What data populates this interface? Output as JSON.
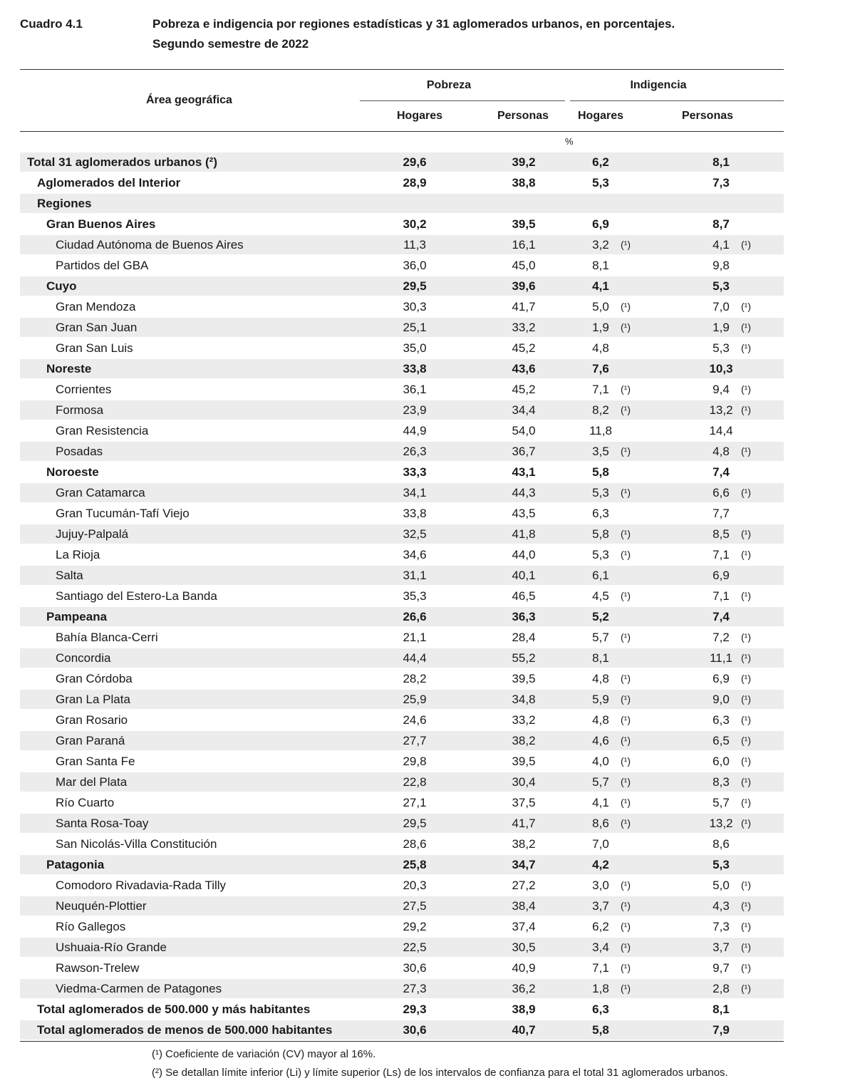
{
  "header": {
    "label": "Cuadro 4.1",
    "title": [
      "Pobreza e indigencia por regiones estadísticas y 31 aglomerados urbanos, en porcentajes.",
      "Segundo semestre de 2022"
    ]
  },
  "table": {
    "area_header": "Área geográfica",
    "groups": [
      "Pobreza",
      "Indigencia"
    ],
    "columns": [
      "Hogares",
      "Personas",
      "Hogares",
      "Personas"
    ],
    "unit": "%",
    "rows": [
      {
        "label": "Total 31 aglomerados urbanos (²)",
        "level": 0,
        "cells": [
          "29,6",
          "39,2",
          "6,2",
          "8,1"
        ]
      },
      {
        "label": "Aglomerados del Interior",
        "level": 1,
        "cells": [
          "28,9",
          "38,8",
          "5,3",
          "7,3"
        ]
      },
      {
        "label": "Regiones",
        "level": 1,
        "cells": []
      },
      {
        "label": "Gran Buenos Aires",
        "level": 2,
        "cells": [
          "30,2",
          "39,5",
          "6,9",
          "8,7"
        ]
      },
      {
        "label": "Ciudad Autónoma de Buenos Aires",
        "level": 3,
        "cells": [
          "11,3",
          "16,1",
          [
            "3,2",
            "(¹)"
          ],
          [
            "4,1",
            "(¹)"
          ]
        ]
      },
      {
        "label": "Partidos del GBA",
        "level": 3,
        "cells": [
          "36,0",
          "45,0",
          "8,1",
          "9,8"
        ]
      },
      {
        "label": "Cuyo",
        "level": 2,
        "cells": [
          "29,5",
          "39,6",
          "4,1",
          "5,3"
        ]
      },
      {
        "label": "Gran Mendoza",
        "level": 3,
        "cells": [
          "30,3",
          "41,7",
          [
            "5,0",
            "(¹)"
          ],
          [
            "7,0",
            "(¹)"
          ]
        ]
      },
      {
        "label": "Gran San Juan",
        "level": 3,
        "cells": [
          "25,1",
          "33,2",
          [
            "1,9",
            "(¹)"
          ],
          [
            "1,9",
            "(¹)"
          ]
        ]
      },
      {
        "label": "Gran San Luis",
        "level": 3,
        "cells": [
          "35,0",
          "45,2",
          "4,8",
          [
            "5,3",
            "(¹)"
          ]
        ]
      },
      {
        "label": "Noreste",
        "level": 2,
        "cells": [
          "33,8",
          "43,6",
          "7,6",
          "10,3"
        ]
      },
      {
        "label": "Corrientes",
        "level": 3,
        "cells": [
          "36,1",
          "45,2",
          [
            "7,1",
            "(¹)"
          ],
          [
            "9,4",
            "(¹)"
          ]
        ]
      },
      {
        "label": "Formosa",
        "level": 3,
        "cells": [
          "23,9",
          "34,4",
          [
            "8,2",
            "(¹)"
          ],
          [
            "13,2",
            "(¹)"
          ]
        ]
      },
      {
        "label": "Gran Resistencia",
        "level": 3,
        "cells": [
          "44,9",
          "54,0",
          "11,8",
          "14,4"
        ]
      },
      {
        "label": "Posadas",
        "level": 3,
        "cells": [
          "26,3",
          "36,7",
          [
            "3,5",
            "(¹)"
          ],
          [
            "4,8",
            "(¹)"
          ]
        ]
      },
      {
        "label": "Noroeste",
        "level": 2,
        "cells": [
          "33,3",
          "43,1",
          "5,8",
          "7,4"
        ]
      },
      {
        "label": "Gran Catamarca",
        "level": 3,
        "cells": [
          "34,1",
          "44,3",
          [
            "5,3",
            "(¹)"
          ],
          [
            "6,6",
            "(¹)"
          ]
        ]
      },
      {
        "label": "Gran Tucumán-Tafí Viejo",
        "level": 3,
        "cells": [
          "33,8",
          "43,5",
          "6,3",
          "7,7"
        ]
      },
      {
        "label": "Jujuy-Palpalá",
        "level": 3,
        "cells": [
          "32,5",
          "41,8",
          [
            "5,8",
            "(¹)"
          ],
          [
            "8,5",
            "(¹)"
          ]
        ]
      },
      {
        "label": "La Rioja",
        "level": 3,
        "cells": [
          "34,6",
          "44,0",
          [
            "5,3",
            "(¹)"
          ],
          [
            "7,1",
            "(¹)"
          ]
        ]
      },
      {
        "label": "Salta",
        "level": 3,
        "cells": [
          "31,1",
          "40,1",
          "6,1",
          "6,9"
        ]
      },
      {
        "label": "Santiago del Estero-La Banda",
        "level": 3,
        "cells": [
          "35,3",
          "46,5",
          [
            "4,5",
            "(¹)"
          ],
          [
            "7,1",
            "(¹)"
          ]
        ]
      },
      {
        "label": "Pampeana",
        "level": 2,
        "cells": [
          "26,6",
          "36,3",
          "5,2",
          "7,4"
        ]
      },
      {
        "label": "Bahía Blanca-Cerri",
        "level": 3,
        "cells": [
          "21,1",
          "28,4",
          [
            "5,7",
            "(¹)"
          ],
          [
            "7,2",
            "(¹)"
          ]
        ]
      },
      {
        "label": "Concordia",
        "level": 3,
        "cells": [
          "44,4",
          "55,2",
          "8,1",
          [
            "11,1",
            "(¹)"
          ]
        ]
      },
      {
        "label": "Gran Córdoba",
        "level": 3,
        "cells": [
          "28,2",
          "39,5",
          [
            "4,8",
            "(¹)"
          ],
          [
            "6,9",
            "(¹)"
          ]
        ]
      },
      {
        "label": "Gran La Plata",
        "level": 3,
        "cells": [
          "25,9",
          "34,8",
          [
            "5,9",
            "(¹)"
          ],
          [
            "9,0",
            "(¹)"
          ]
        ]
      },
      {
        "label": "Gran Rosario",
        "level": 3,
        "cells": [
          "24,6",
          "33,2",
          [
            "4,8",
            "(¹)"
          ],
          [
            "6,3",
            "(¹)"
          ]
        ]
      },
      {
        "label": "Gran Paraná",
        "level": 3,
        "cells": [
          "27,7",
          "38,2",
          [
            "4,6",
            "(¹)"
          ],
          [
            "6,5",
            "(¹)"
          ]
        ]
      },
      {
        "label": "Gran Santa Fe",
        "level": 3,
        "cells": [
          "29,8",
          "39,5",
          [
            "4,0",
            "(¹)"
          ],
          [
            "6,0",
            "(¹)"
          ]
        ]
      },
      {
        "label": "Mar del Plata",
        "level": 3,
        "cells": [
          "22,8",
          "30,4",
          [
            "5,7",
            "(¹)"
          ],
          [
            "8,3",
            "(¹)"
          ]
        ]
      },
      {
        "label": "Río Cuarto",
        "level": 3,
        "cells": [
          "27,1",
          "37,5",
          [
            "4,1",
            "(¹)"
          ],
          [
            "5,7",
            "(¹)"
          ]
        ]
      },
      {
        "label": "Santa Rosa-Toay",
        "level": 3,
        "cells": [
          "29,5",
          "41,7",
          [
            "8,6",
            "(¹)"
          ],
          [
            "13,2",
            "(¹)"
          ]
        ]
      },
      {
        "label": "San Nicolás-Villa Constitución",
        "level": 3,
        "cells": [
          "28,6",
          "38,2",
          "7,0",
          "8,6"
        ]
      },
      {
        "label": "Patagonia",
        "level": 2,
        "cells": [
          "25,8",
          "34,7",
          "4,2",
          "5,3"
        ]
      },
      {
        "label": "Comodoro Rivadavia-Rada Tilly",
        "level": 3,
        "cells": [
          "20,3",
          "27,2",
          [
            "3,0",
            "(¹)"
          ],
          [
            "5,0",
            "(¹)"
          ]
        ]
      },
      {
        "label": "Neuquén-Plottier",
        "level": 3,
        "cells": [
          "27,5",
          "38,4",
          [
            "3,7",
            "(¹)"
          ],
          [
            "4,3",
            "(¹)"
          ]
        ]
      },
      {
        "label": "Río Gallegos",
        "level": 3,
        "cells": [
          "29,2",
          "37,4",
          [
            "6,2",
            "(¹)"
          ],
          [
            "7,3",
            "(¹)"
          ]
        ]
      },
      {
        "label": "Ushuaia-Río Grande",
        "level": 3,
        "cells": [
          "22,5",
          "30,5",
          [
            "3,4",
            "(¹)"
          ],
          [
            "3,7",
            "(¹)"
          ]
        ]
      },
      {
        "label": "Rawson-Trelew",
        "level": 3,
        "cells": [
          "30,6",
          "40,9",
          [
            "7,1",
            "(¹)"
          ],
          [
            "9,7",
            "(¹)"
          ]
        ]
      },
      {
        "label": "Viedma-Carmen de Patagones",
        "level": 3,
        "cells": [
          "27,3",
          "36,2",
          [
            "1,8",
            "(¹)"
          ],
          [
            "2,8",
            "(¹)"
          ]
        ]
      },
      {
        "label": "Total aglomerados de 500.000 y más habitantes",
        "level": 1,
        "cells": [
          "29,3",
          "38,9",
          "6,3",
          "8,1"
        ]
      },
      {
        "label": "Total aglomerados de menos de 500.000 habitantes",
        "level": 1,
        "cells": [
          "30,6",
          "40,7",
          "5,8",
          "7,9"
        ]
      }
    ]
  },
  "footnotes": [
    "(¹) Coeficiente de variación (CV) mayor al 16%.",
    "(²) Se detallan límite inferior (Li) y límite superior (Ls) de los intervalos de confianza para el total 31 aglomerados urbanos."
  ]
}
